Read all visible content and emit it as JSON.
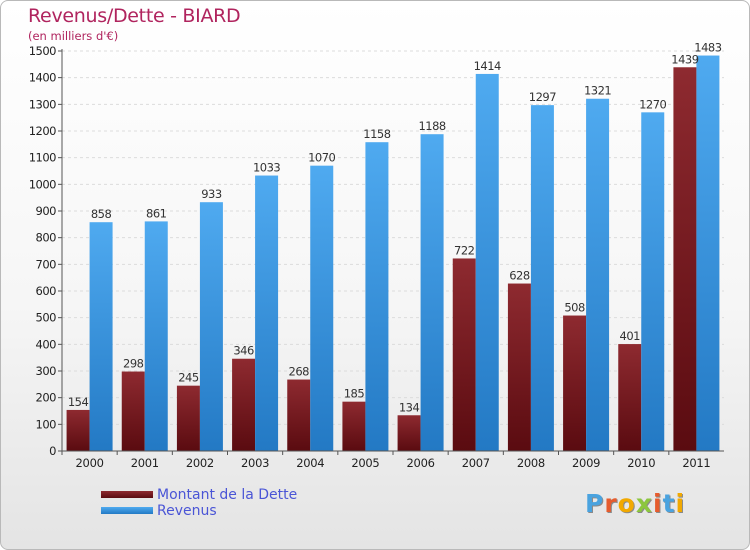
{
  "chart_data": {
    "type": "bar",
    "title": "Revenus/Dette - BIARD",
    "subtitle": "(en milliers d'€)",
    "xlabel": "",
    "ylabel": "",
    "ylim": [
      0,
      1500
    ],
    "ytick_step": 100,
    "grid": true,
    "legend_position": "bottom-left",
    "categories": [
      "2000",
      "2001",
      "2002",
      "2003",
      "2004",
      "2005",
      "2006",
      "2007",
      "2008",
      "2009",
      "2010",
      "2011"
    ],
    "series": [
      {
        "name": "Montant de la Dette",
        "color": "#7a1a1f",
        "values": [
          154,
          298,
          245,
          346,
          268,
          185,
          134,
          722,
          628,
          508,
          401,
          1439
        ]
      },
      {
        "name": "Revenus",
        "color": "#3d9de6",
        "values": [
          858,
          861,
          933,
          1033,
          1070,
          1158,
          1188,
          1414,
          1297,
          1321,
          1270,
          1483
        ]
      }
    ]
  },
  "brand": {
    "logo_text": "Proxiti",
    "logo_colors": [
      "#4aa3df",
      "#e65c2e",
      "#f2a900",
      "#8cc63f",
      "#e65c2e",
      "#4aa3df",
      "#f2a900"
    ]
  }
}
